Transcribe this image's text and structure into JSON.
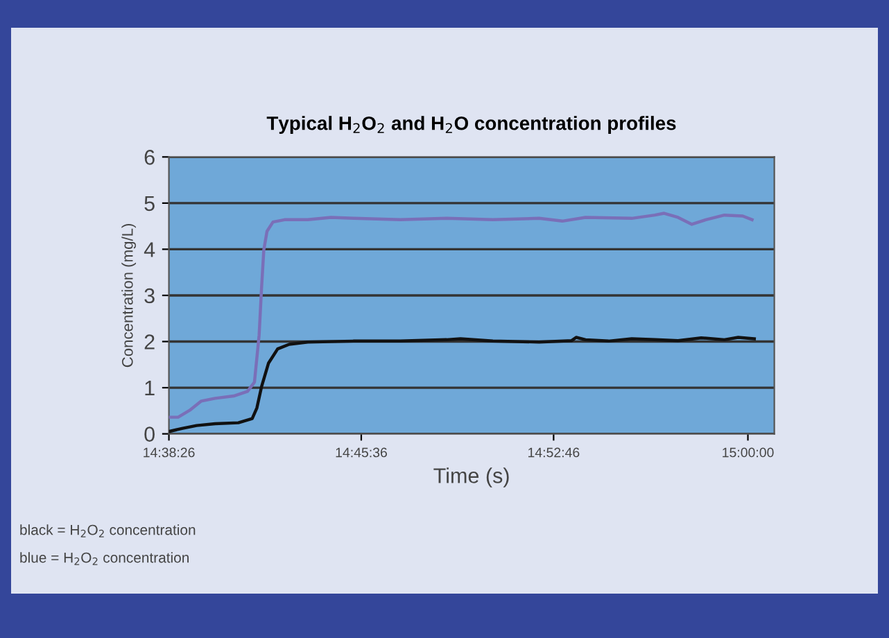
{
  "chart_data": {
    "type": "line",
    "title": "Typical H$_{2}$O$_{2}$ and H$_{2}$O concentration profiles",
    "xlabel": "Time (s)",
    "ylabel": "Concentration (mg/L)",
    "annotations": [
      "black = H$_{2}$O$_{2}$ concentration",
      "blue = H$_{2}$O$_{2}$ concentration"
    ],
    "xlim": [
      14.6406,
      15.0164
    ],
    "ylim": [
      0,
      6
    ],
    "xticks": [
      {
        "value": 14.6406,
        "label": "14:38:26"
      },
      {
        "value": 14.76,
        "label": "14:45:36"
      },
      {
        "value": 14.8794,
        "label": "14:52:46"
      },
      {
        "value": 15.0,
        "label": "15:00:00"
      }
    ],
    "yticks": [
      0,
      1,
      2,
      3,
      4,
      5,
      6
    ],
    "grid": "y",
    "legend": false,
    "marker": "none",
    "line_style": "solid",
    "series": [
      {
        "color": "#7a6fb8",
        "x": [
          14.6406,
          14.6463,
          14.6535,
          14.6607,
          14.6693,
          14.6808,
          14.6894,
          14.6937,
          14.6966,
          14.6981,
          14.6995,
          14.7015,
          14.7052,
          14.7124,
          14.7268,
          14.7412,
          14.7555,
          14.7843,
          14.813,
          14.8417,
          14.8704,
          14.8848,
          14.8992,
          14.9279,
          14.9423,
          14.948,
          14.9566,
          14.9652,
          14.9739,
          14.9854,
          14.9968,
          15.0026
        ],
        "values": [
          0.36,
          0.36,
          0.51,
          0.71,
          0.77,
          0.82,
          0.92,
          1.12,
          2.14,
          3.16,
          3.98,
          4.39,
          4.59,
          4.64,
          4.64,
          4.69,
          4.67,
          4.64,
          4.67,
          4.64,
          4.67,
          4.61,
          4.69,
          4.67,
          4.74,
          4.78,
          4.69,
          4.54,
          4.64,
          4.74,
          4.72,
          4.64
        ]
      },
      {
        "color": "#111111",
        "x": [
          14.6406,
          14.6492,
          14.6578,
          14.6693,
          14.6837,
          14.6923,
          14.6952,
          14.6981,
          14.7024,
          14.7081,
          14.7153,
          14.7268,
          14.7555,
          14.7843,
          14.813,
          14.8216,
          14.8417,
          14.8704,
          14.8906,
          14.8934,
          14.8992,
          14.9135,
          14.9279,
          14.9423,
          14.9566,
          14.971,
          14.9854,
          14.994,
          15.004
        ],
        "values": [
          0.05,
          0.12,
          0.18,
          0.22,
          0.24,
          0.33,
          0.56,
          1.02,
          1.53,
          1.84,
          1.94,
          1.99,
          2.01,
          2.01,
          2.04,
          2.06,
          2.01,
          1.99,
          2.02,
          2.09,
          2.04,
          2.01,
          2.06,
          2.04,
          2.02,
          2.08,
          2.04,
          2.09,
          2.06
        ]
      }
    ]
  }
}
